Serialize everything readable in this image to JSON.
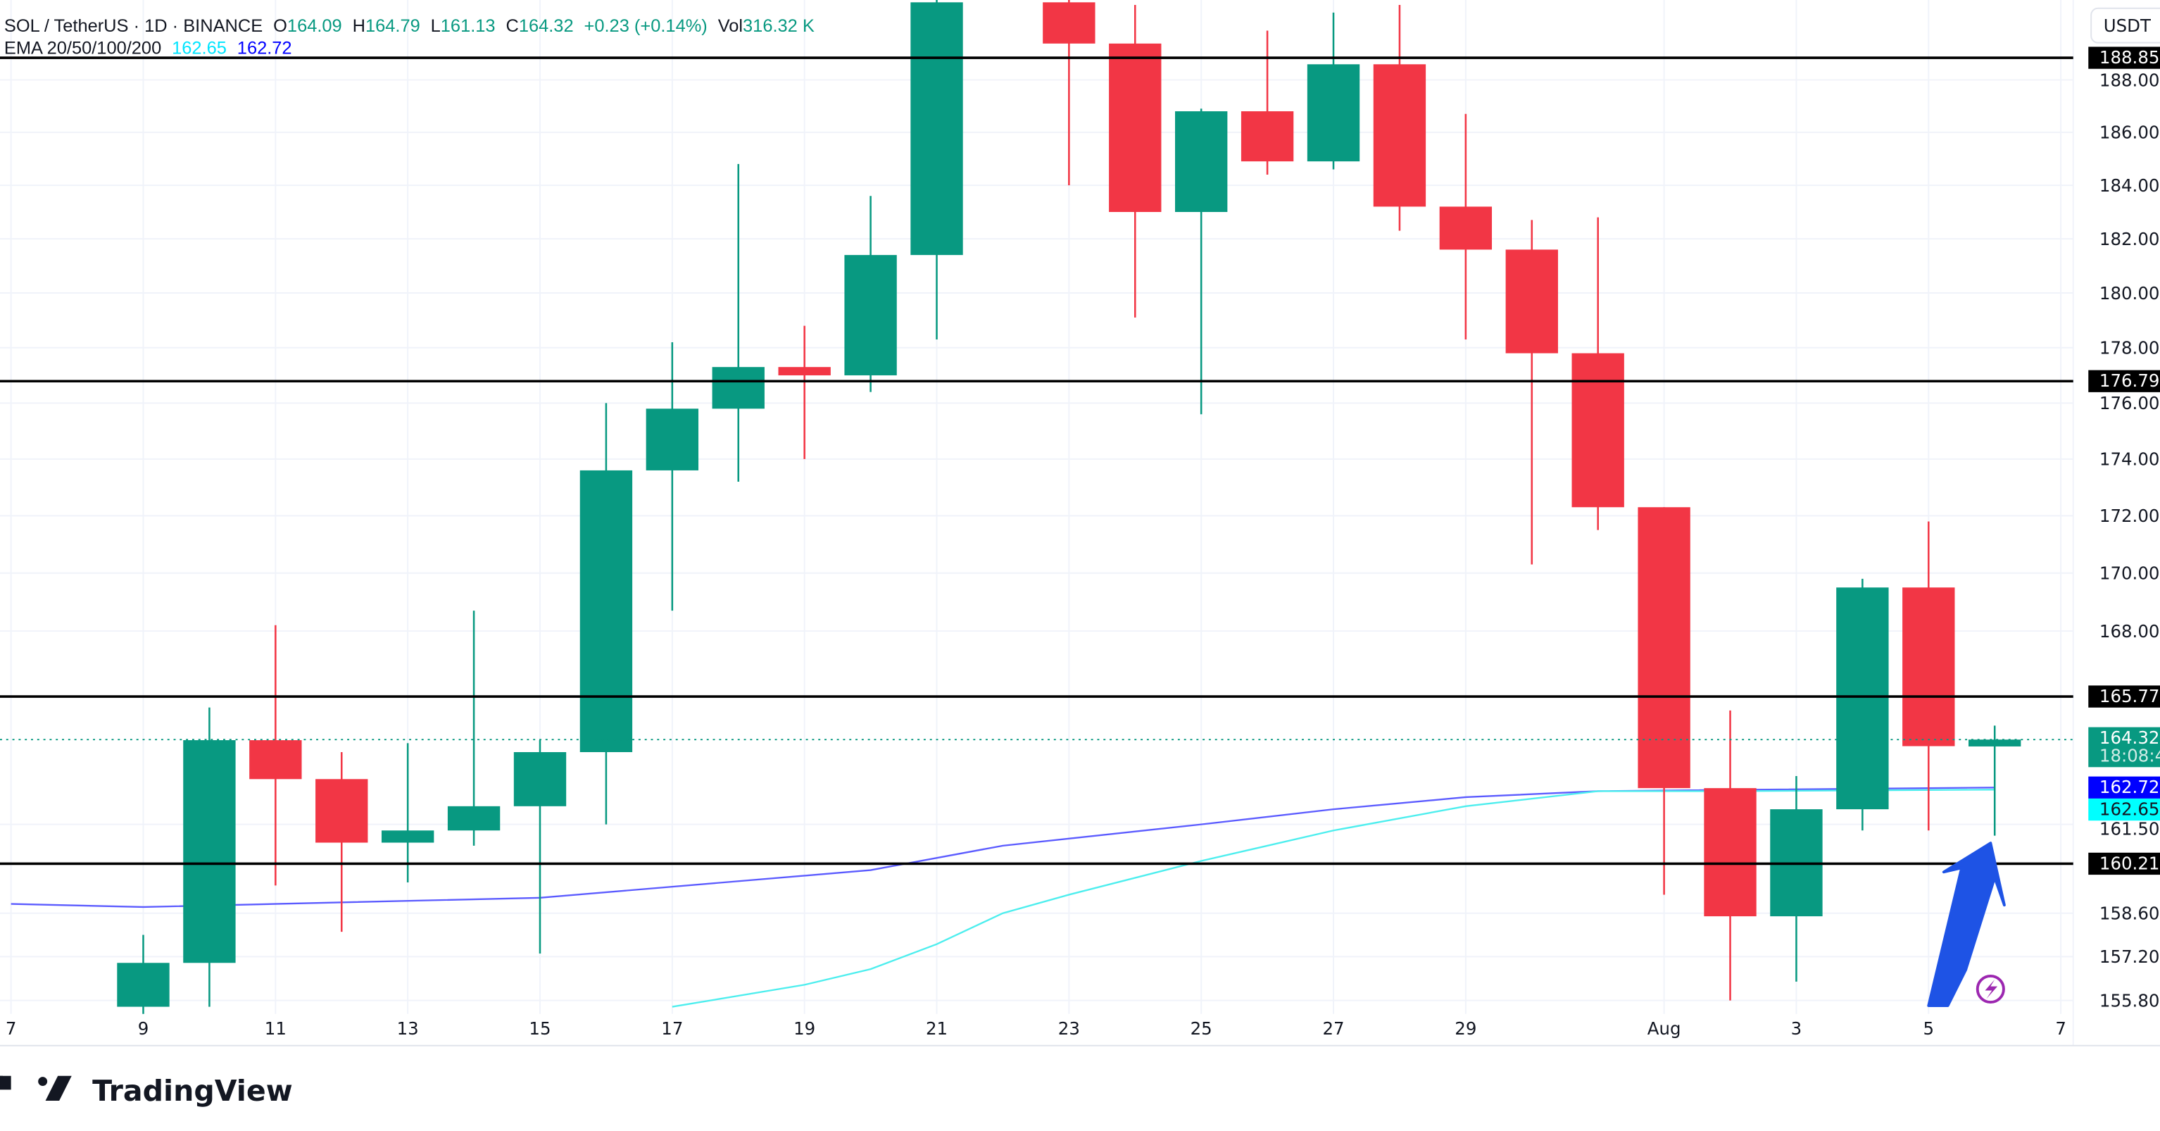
{
  "header": {
    "symbol": "SOL / TetherUS · 1D · BINANCE",
    "o_label": "O",
    "o": "164.09",
    "h_label": "H",
    "h": "164.79",
    "l_label": "L",
    "l": "161.13",
    "c_label": "C",
    "c": "164.32",
    "change": "+0.23 (+0.14%)",
    "vol_label": "Vol",
    "vol": "316.32 K",
    "ema_label": "EMA 20/50/100/200",
    "ema_fast": "162.65",
    "ema_slow": "162.72"
  },
  "currency_button": "USDT",
  "countdown": "18:08:4",
  "logo_text": "TradingView",
  "colors": {
    "up": "#089981",
    "down": "#f23645",
    "ema_fast": "#00ffff",
    "ema_slow": "#0000ff",
    "level": "#000000",
    "arrow": "#1e53e5",
    "lightning": "#9c27b0"
  },
  "icons": {
    "arrow": "arrow-up-annotation",
    "lightning": "lightning-icon"
  },
  "chart_data": {
    "type": "candlestick",
    "y_scale": "log",
    "ylim": [
      155.5,
      191
    ],
    "grid": true,
    "x_ticks": [
      "7",
      "9",
      "11",
      "13",
      "15",
      "17",
      "19",
      "21",
      "23",
      "25",
      "27",
      "29",
      "Aug",
      "3",
      "5",
      "7"
    ],
    "x_tick_dates": [
      "2024-07-07",
      "2024-07-09",
      "2024-07-11",
      "2024-07-13",
      "2024-07-15",
      "2024-07-17",
      "2024-07-19",
      "2024-07-21",
      "2024-07-23",
      "2024-07-25",
      "2024-07-27",
      "2024-07-29",
      "2024-08-01",
      "2024-08-03",
      "2024-08-05",
      "2024-08-07"
    ],
    "y_ticks": [
      "188.00",
      "186.00",
      "184.00",
      "182.00",
      "180.00",
      "178.00",
      "176.00",
      "174.00",
      "172.00",
      "170.00",
      "168.00",
      "161.50",
      "158.60",
      "157.20",
      "155.80"
    ],
    "candles": [
      {
        "date": "2024-07-09",
        "o": 155.6,
        "h": 157.9,
        "l": 155.0,
        "c": 157.0
      },
      {
        "date": "2024-07-10",
        "o": 157.0,
        "h": 165.4,
        "l": 155.6,
        "c": 164.3
      },
      {
        "date": "2024-07-11",
        "o": 164.3,
        "h": 168.2,
        "l": 159.5,
        "c": 163.0
      },
      {
        "date": "2024-07-12",
        "o": 163.0,
        "h": 163.9,
        "l": 158.0,
        "c": 160.9
      },
      {
        "date": "2024-07-13",
        "o": 160.9,
        "h": 164.2,
        "l": 159.6,
        "c": 161.3
      },
      {
        "date": "2024-07-14",
        "o": 161.3,
        "h": 168.7,
        "l": 160.8,
        "c": 162.1
      },
      {
        "date": "2024-07-15",
        "o": 162.1,
        "h": 164.3,
        "l": 157.3,
        "c": 163.9
      },
      {
        "date": "2024-07-16",
        "o": 163.9,
        "h": 176.0,
        "l": 161.5,
        "c": 173.6
      },
      {
        "date": "2024-07-17",
        "o": 173.6,
        "h": 178.2,
        "l": 168.7,
        "c": 175.8
      },
      {
        "date": "2024-07-18",
        "o": 175.8,
        "h": 184.8,
        "l": 173.2,
        "c": 177.3
      },
      {
        "date": "2024-07-19",
        "o": 177.3,
        "h": 178.8,
        "l": 174.0,
        "c": 177.0
      },
      {
        "date": "2024-07-20",
        "o": 177.0,
        "h": 183.6,
        "l": 176.4,
        "c": 181.4
      },
      {
        "date": "2024-07-21",
        "o": 181.4,
        "h": 191.5,
        "l": 178.3,
        "c": 191.0
      },
      {
        "date": "2024-07-23",
        "o": 191.0,
        "h": 191.5,
        "l": 184.0,
        "c": 189.4
      },
      {
        "date": "2024-07-24",
        "o": 189.4,
        "h": 190.9,
        "l": 179.1,
        "c": 183.0
      },
      {
        "date": "2024-07-25",
        "o": 183.0,
        "h": 186.9,
        "l": 175.6,
        "c": 186.8
      },
      {
        "date": "2024-07-26",
        "o": 186.8,
        "h": 189.9,
        "l": 184.4,
        "c": 184.9
      },
      {
        "date": "2024-07-27",
        "o": 184.9,
        "h": 190.6,
        "l": 184.6,
        "c": 188.6
      },
      {
        "date": "2024-07-28",
        "o": 188.6,
        "h": 190.9,
        "l": 182.3,
        "c": 183.2
      },
      {
        "date": "2024-07-29",
        "o": 183.2,
        "h": 186.7,
        "l": 178.3,
        "c": 181.6
      },
      {
        "date": "2024-07-30",
        "o": 181.6,
        "h": 182.7,
        "l": 170.3,
        "c": 177.8
      },
      {
        "date": "2024-07-31",
        "o": 177.8,
        "h": 182.8,
        "l": 171.5,
        "c": 172.3
      },
      {
        "date": "2024-08-01",
        "o": 172.3,
        "h": 172.3,
        "l": 159.2,
        "c": 162.7
      },
      {
        "date": "2024-08-02",
        "o": 162.7,
        "h": 165.3,
        "l": 155.8,
        "c": 158.5
      },
      {
        "date": "2024-08-03",
        "o": 158.5,
        "h": 163.1,
        "l": 156.4,
        "c": 162.0
      },
      {
        "date": "2024-08-04",
        "o": 162.0,
        "h": 169.8,
        "l": 161.3,
        "c": 169.5
      },
      {
        "date": "2024-08-05",
        "o": 169.5,
        "h": 171.8,
        "l": 161.3,
        "c": 164.1
      },
      {
        "date": "2024-08-06",
        "o": 164.09,
        "h": 164.79,
        "l": 161.13,
        "c": 164.32
      }
    ],
    "ema_slow": [
      {
        "date": "2024-07-07",
        "v": 158.9
      },
      {
        "date": "2024-07-09",
        "v": 158.8
      },
      {
        "date": "2024-07-11",
        "v": 158.9
      },
      {
        "date": "2024-07-15",
        "v": 159.1
      },
      {
        "date": "2024-07-20",
        "v": 160.0
      },
      {
        "date": "2024-07-22",
        "v": 160.8
      },
      {
        "date": "2024-07-25",
        "v": 161.5
      },
      {
        "date": "2024-07-27",
        "v": 162.0
      },
      {
        "date": "2024-07-29",
        "v": 162.4
      },
      {
        "date": "2024-07-31",
        "v": 162.6
      },
      {
        "date": "2024-08-06",
        "v": 162.72
      }
    ],
    "ema_fast": [
      {
        "date": "2024-07-17",
        "v": 155.6
      },
      {
        "date": "2024-07-19",
        "v": 156.3
      },
      {
        "date": "2024-07-20",
        "v": 156.8
      },
      {
        "date": "2024-07-21",
        "v": 157.6
      },
      {
        "date": "2024-07-22",
        "v": 158.6
      },
      {
        "date": "2024-07-23",
        "v": 159.2
      },
      {
        "date": "2024-07-25",
        "v": 160.3
      },
      {
        "date": "2024-07-27",
        "v": 161.3
      },
      {
        "date": "2024-07-29",
        "v": 162.1
      },
      {
        "date": "2024-07-31",
        "v": 162.6
      },
      {
        "date": "2024-08-02",
        "v": 162.6
      },
      {
        "date": "2024-08-06",
        "v": 162.65
      }
    ],
    "horizontal_levels": [
      "188.85",
      "176.79",
      "165.77",
      "160.21"
    ],
    "last_price": "164.32",
    "ema_labels": [
      "162.72",
      "162.65"
    ]
  }
}
